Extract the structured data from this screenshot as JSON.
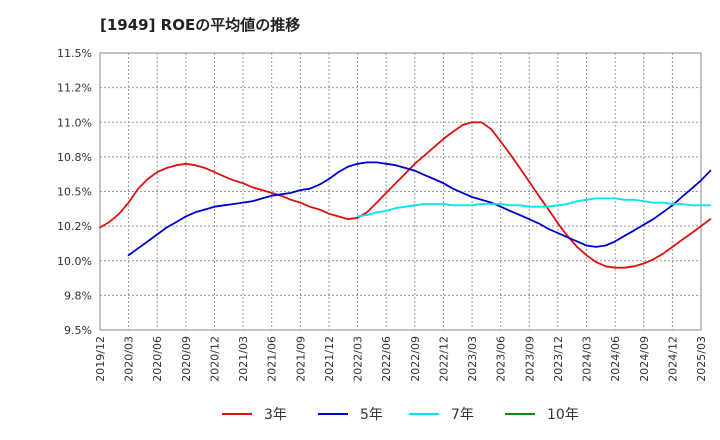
{
  "chart_data": {
    "type": "line",
    "title": "[1949]  ROEの平均値の推移",
    "xlabel": "",
    "ylabel": "",
    "ylim": [
      9.5,
      11.5
    ],
    "yticks": [
      "9.5%",
      "9.8%",
      "10.0%",
      "10.2%",
      "10.5%",
      "10.8%",
      "11.0%",
      "11.2%",
      "11.5%"
    ],
    "ytick_values": [
      9.5,
      9.75,
      10.0,
      10.25,
      10.5,
      10.75,
      11.0,
      11.25,
      11.5
    ],
    "x_labels": [
      "2019/12",
      "2020/03",
      "2020/06",
      "2020/09",
      "2020/12",
      "2021/03",
      "2021/06",
      "2021/09",
      "2021/12",
      "2022/03",
      "2022/06",
      "2022/09",
      "2022/12",
      "2023/03",
      "2023/06",
      "2023/09",
      "2023/12",
      "2024/03",
      "2024/06",
      "2024/09",
      "2024/12",
      "2025/03"
    ],
    "grid": true,
    "legend_position": "bottom",
    "series": [
      {
        "name": "3年",
        "color": "#dd1111",
        "points": [
          [
            0,
            10.24
          ],
          [
            0.33,
            10.28
          ],
          [
            0.67,
            10.34
          ],
          [
            1,
            10.42
          ],
          [
            1.33,
            10.52
          ],
          [
            1.67,
            10.59
          ],
          [
            2,
            10.64
          ],
          [
            2.33,
            10.67
          ],
          [
            2.67,
            10.69
          ],
          [
            3,
            10.7
          ],
          [
            3.33,
            10.69
          ],
          [
            3.67,
            10.67
          ],
          [
            4,
            10.64
          ],
          [
            4.33,
            10.61
          ],
          [
            4.67,
            10.58
          ],
          [
            5,
            10.56
          ],
          [
            5.33,
            10.53
          ],
          [
            5.67,
            10.51
          ],
          [
            6,
            10.49
          ],
          [
            6.33,
            10.47
          ],
          [
            6.67,
            10.44
          ],
          [
            7,
            10.42
          ],
          [
            7.33,
            10.39
          ],
          [
            7.67,
            10.37
          ],
          [
            8,
            10.34
          ],
          [
            8.33,
            10.32
          ],
          [
            8.67,
            10.3
          ],
          [
            9,
            10.31
          ],
          [
            9.33,
            10.35
          ],
          [
            9.67,
            10.42
          ],
          [
            10,
            10.49
          ],
          [
            10.33,
            10.56
          ],
          [
            10.67,
            10.63
          ],
          [
            11,
            10.7
          ],
          [
            11.33,
            10.76
          ],
          [
            11.67,
            10.82
          ],
          [
            12,
            10.88
          ],
          [
            12.33,
            10.93
          ],
          [
            12.67,
            10.98
          ],
          [
            13,
            11.0
          ],
          [
            13.33,
            11.0
          ],
          [
            13.67,
            10.95
          ],
          [
            14,
            10.86
          ],
          [
            14.33,
            10.77
          ],
          [
            14.67,
            10.67
          ],
          [
            15,
            10.57
          ],
          [
            15.33,
            10.47
          ],
          [
            15.67,
            10.37
          ],
          [
            16,
            10.27
          ],
          [
            16.33,
            10.18
          ],
          [
            16.67,
            10.1
          ],
          [
            17,
            10.04
          ],
          [
            17.33,
            9.99
          ],
          [
            17.67,
            9.96
          ],
          [
            18,
            9.95
          ],
          [
            18.33,
            9.95
          ],
          [
            18.67,
            9.96
          ],
          [
            19,
            9.98
          ],
          [
            19.33,
            10.01
          ],
          [
            19.67,
            10.05
          ],
          [
            20,
            10.1
          ],
          [
            20.33,
            10.15
          ],
          [
            20.67,
            10.2
          ],
          [
            21,
            10.25
          ],
          [
            21.33,
            10.3
          ]
        ]
      },
      {
        "name": "5年",
        "color": "#0000cc",
        "points": [
          [
            1,
            10.04
          ],
          [
            1.33,
            10.09
          ],
          [
            1.67,
            10.14
          ],
          [
            2,
            10.19
          ],
          [
            2.33,
            10.24
          ],
          [
            2.67,
            10.28
          ],
          [
            3,
            10.32
          ],
          [
            3.33,
            10.35
          ],
          [
            3.67,
            10.37
          ],
          [
            4,
            10.39
          ],
          [
            4.33,
            10.4
          ],
          [
            4.67,
            10.41
          ],
          [
            5,
            10.42
          ],
          [
            5.33,
            10.43
          ],
          [
            5.67,
            10.45
          ],
          [
            6,
            10.47
          ],
          [
            6.33,
            10.48
          ],
          [
            6.67,
            10.49
          ],
          [
            7,
            10.51
          ],
          [
            7.33,
            10.52
          ],
          [
            7.67,
            10.55
          ],
          [
            8,
            10.59
          ],
          [
            8.33,
            10.64
          ],
          [
            8.67,
            10.68
          ],
          [
            9,
            10.7
          ],
          [
            9.33,
            10.71
          ],
          [
            9.67,
            10.71
          ],
          [
            10,
            10.7
          ],
          [
            10.33,
            10.69
          ],
          [
            10.67,
            10.67
          ],
          [
            11,
            10.65
          ],
          [
            11.33,
            10.62
          ],
          [
            11.67,
            10.59
          ],
          [
            12,
            10.56
          ],
          [
            12.33,
            10.52
          ],
          [
            12.67,
            10.49
          ],
          [
            13,
            10.46
          ],
          [
            13.33,
            10.44
          ],
          [
            13.67,
            10.42
          ],
          [
            14,
            10.39
          ],
          [
            14.33,
            10.36
          ],
          [
            14.67,
            10.33
          ],
          [
            15,
            10.3
          ],
          [
            15.33,
            10.27
          ],
          [
            15.67,
            10.23
          ],
          [
            16,
            10.2
          ],
          [
            16.33,
            10.17
          ],
          [
            16.67,
            10.14
          ],
          [
            17,
            10.11
          ],
          [
            17.33,
            10.1
          ],
          [
            17.67,
            10.11
          ],
          [
            18,
            10.14
          ],
          [
            18.33,
            10.18
          ],
          [
            18.67,
            10.22
          ],
          [
            19,
            10.26
          ],
          [
            19.33,
            10.3
          ],
          [
            19.67,
            10.35
          ],
          [
            20,
            10.4
          ],
          [
            20.33,
            10.46
          ],
          [
            20.67,
            10.52
          ],
          [
            21,
            10.58
          ],
          [
            21.33,
            10.65
          ]
        ]
      },
      {
        "name": "7年",
        "color": "#00e5ee",
        "points": [
          [
            9,
            10.32
          ],
          [
            9.33,
            10.33
          ],
          [
            9.67,
            10.35
          ],
          [
            10,
            10.36
          ],
          [
            10.33,
            10.38
          ],
          [
            10.67,
            10.39
          ],
          [
            11,
            10.4
          ],
          [
            11.33,
            10.41
          ],
          [
            11.67,
            10.41
          ],
          [
            12,
            10.41
          ],
          [
            12.33,
            10.4
          ],
          [
            12.67,
            10.4
          ],
          [
            13,
            10.4
          ],
          [
            13.33,
            10.41
          ],
          [
            13.67,
            10.41
          ],
          [
            14,
            10.41
          ],
          [
            14.33,
            10.4
          ],
          [
            14.67,
            10.4
          ],
          [
            15,
            10.39
          ],
          [
            15.33,
            10.39
          ],
          [
            15.67,
            10.39
          ],
          [
            16,
            10.4
          ],
          [
            16.33,
            10.41
          ],
          [
            16.67,
            10.43
          ],
          [
            17,
            10.44
          ],
          [
            17.33,
            10.45
          ],
          [
            17.67,
            10.45
          ],
          [
            18,
            10.45
          ],
          [
            18.33,
            10.44
          ],
          [
            18.67,
            10.44
          ],
          [
            19,
            10.43
          ],
          [
            19.33,
            10.42
          ],
          [
            19.67,
            10.42
          ],
          [
            20,
            10.41
          ],
          [
            20.33,
            10.41
          ],
          [
            20.67,
            10.4
          ],
          [
            21,
            10.4
          ],
          [
            21.33,
            10.4
          ]
        ]
      },
      {
        "name": "10年",
        "color": "#118811",
        "points": []
      }
    ]
  }
}
